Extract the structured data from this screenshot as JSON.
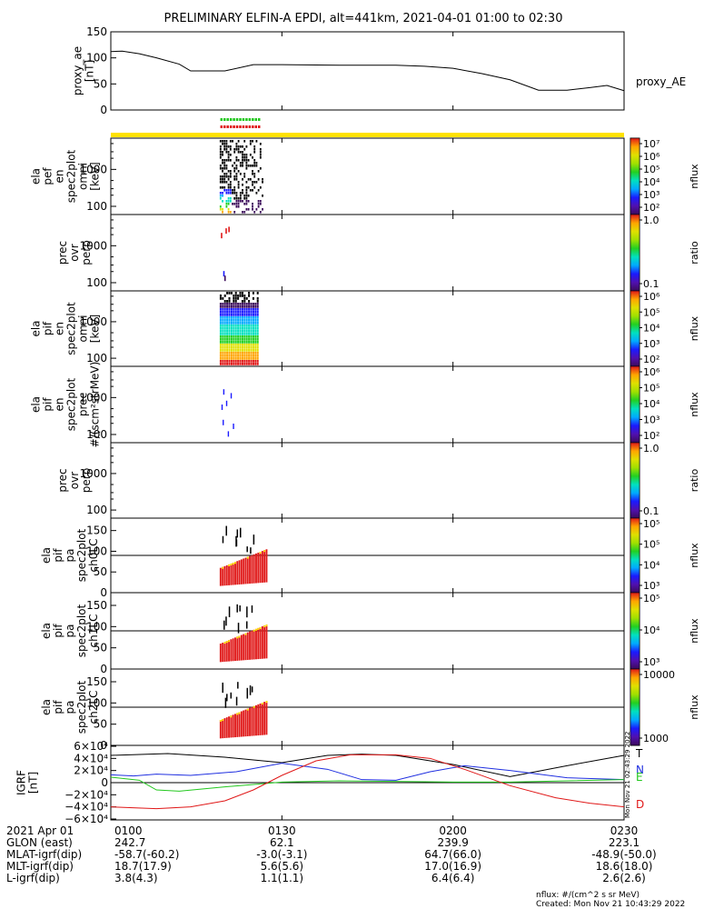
{
  "title": "PRELIMINARY ELFIN-A EPDI, alt=441km, 2021-04-01 01:00 to 02:30",
  "colors": {
    "black": "#000000",
    "blue": "#1f2fe0",
    "green": "#22c81e",
    "red": "#e01818",
    "yellow": "#ffe200",
    "orange": "#ffa500",
    "dark_purple": "#3b0a5a"
  },
  "chart_data": [
    {
      "type": "line",
      "ylabel": "proxy_ae\n[nT]",
      "yticks": [
        "150",
        "100",
        "50",
        "0"
      ],
      "ylim": [
        0,
        150
      ],
      "legend": "proxy_AE",
      "series": [
        {
          "name": "proxy_AE",
          "x": [
            0,
            2,
            5,
            8,
            12,
            14,
            20,
            25,
            30,
            40,
            45,
            50,
            55,
            60,
            65,
            70,
            75,
            80,
            84,
            87,
            90
          ],
          "values": [
            112,
            113,
            108,
            100,
            88,
            75,
            75,
            87,
            87,
            86,
            86,
            86,
            84,
            80,
            70,
            58,
            38,
            38,
            43,
            47,
            37
          ]
        }
      ]
    },
    {
      "type": "heatmap",
      "ylabel": "ela\npef\nen\nspec2plot\nomni\n[keV]",
      "yticks": [
        "1000",
        "100"
      ],
      "cbar_label": "nflux",
      "cbar_ticks": [
        "10⁷",
        "10⁶",
        "10⁵",
        "10⁴",
        "10³",
        "10²"
      ]
    },
    {
      "type": "heatmap",
      "ylabel": "prec\novr\nperp",
      "yticks": [
        "1000",
        "100"
      ],
      "cbar_label": "ratio",
      "cbar_ticks": [
        "1.0",
        "0.1"
      ]
    },
    {
      "type": "heatmap",
      "ylabel": "ela\npif\nen\nspec2plot\nomni\n[keV]",
      "yticks": [
        "1000",
        "100"
      ],
      "cbar_label": "nflux",
      "cbar_ticks": [
        "10⁶",
        "10⁵",
        "10⁴",
        "10³",
        "10²"
      ]
    },
    {
      "type": "heatmap",
      "ylabel": "ela\npif\nen\nspec2plot\nprec\n#/(scm²strMeV)",
      "yticks": [
        "1000",
        "100"
      ],
      "cbar_label": "nflux",
      "cbar_ticks": [
        "10⁶",
        "10⁵",
        "10⁴",
        "10³",
        "10²"
      ]
    },
    {
      "type": "heatmap",
      "ylabel": "prec\novr\nperp",
      "yticks": [
        "1000",
        "100"
      ],
      "cbar_label": "ratio",
      "cbar_ticks": [
        "1.0",
        "0.1"
      ]
    },
    {
      "type": "heatmap",
      "ylabel": "ela\npif\npa\nspec2plot\nch0LC",
      "yticks": [
        "150",
        "100",
        "50",
        "0"
      ],
      "cbar_label": "nflux",
      "cbar_ticks": [
        "10⁵",
        "10⁵",
        "10⁴",
        "10³"
      ]
    },
    {
      "type": "heatmap",
      "ylabel": "ela\npif\npa\nspec2plot\nch1LC",
      "yticks": [
        "150",
        "100",
        "50",
        "0"
      ],
      "cbar_label": "nflux",
      "cbar_ticks": [
        "10⁵",
        "10⁴",
        "10³"
      ]
    },
    {
      "type": "heatmap",
      "ylabel": "ela\npif\npa\nspec2plot\nch2LC",
      "yticks": [
        "150",
        "100",
        "50",
        "0"
      ],
      "cbar_label": "nflux",
      "cbar_ticks": [
        "10000",
        "1000"
      ]
    },
    {
      "type": "line",
      "ylabel": "IGRF\n[nT]",
      "yticks": [
        "6×10⁴",
        "4×10⁴",
        "2×10⁴",
        "0",
        "−2×10⁴",
        "−4×10⁴",
        "−6×10⁴"
      ],
      "ylim": [
        -60000,
        60000
      ],
      "series": [
        {
          "name": "T",
          "color": "black",
          "x": [
            0,
            10,
            20,
            30,
            38,
            44,
            50,
            60,
            70,
            80,
            90
          ],
          "values": [
            45000,
            48000,
            42000,
            33000,
            45000,
            47000,
            45000,
            30000,
            10000,
            28000,
            45000
          ]
        },
        {
          "name": "N",
          "color": "blue",
          "x": [
            0,
            4,
            8,
            14,
            22,
            30,
            38,
            44,
            50,
            56,
            62,
            70,
            80,
            90
          ],
          "values": [
            13000,
            11000,
            14000,
            12000,
            18000,
            32000,
            22000,
            5000,
            4000,
            18000,
            28000,
            20000,
            8000,
            5000
          ]
        },
        {
          "name": "E",
          "color": "green",
          "x": [
            0,
            5,
            8,
            12,
            20,
            30,
            40,
            50,
            60,
            70,
            80,
            90
          ],
          "values": [
            9000,
            4000,
            -12000,
            -14000,
            -7000,
            1000,
            3000,
            2000,
            1000,
            1000,
            3000,
            5000
          ]
        },
        {
          "name": "D",
          "color": "red",
          "x": [
            0,
            8,
            14,
            20,
            25,
            30,
            36,
            42,
            50,
            56,
            62,
            70,
            78,
            84,
            90
          ],
          "values": [
            -40000,
            -43000,
            -40000,
            -30000,
            -12000,
            12000,
            36000,
            46000,
            46000,
            40000,
            22000,
            -5000,
            -25000,
            -34000,
            -40000
          ]
        }
      ]
    }
  ],
  "footer": {
    "rows": [
      {
        "label": "2021 Apr 01",
        "values": [
          "0100",
          "0130",
          "0200",
          "0230"
        ]
      },
      {
        "label": "GLON (east)",
        "values": [
          "242.7",
          "62.1",
          "239.9",
          "223.1"
        ]
      },
      {
        "label": "MLAT-igrf(dip)",
        "values": [
          "-58.7(-60.2)",
          "-3.0(-3.1)",
          "64.7(66.0)",
          "-48.9(-50.0)"
        ]
      },
      {
        "label": "MLT-igrf(dip)",
        "values": [
          "18.7(17.9)",
          "5.6(5.6)",
          "17.0(16.9)",
          "18.6(18.0)"
        ]
      },
      {
        "label": "L-igrf(dip)",
        "values": [
          "3.8(4.3)",
          "1.1(1.1)",
          "6.4(6.4)",
          "2.6(2.6)"
        ]
      }
    ],
    "units_note": "nflux: #/(cm^2 s sr MeV)",
    "created": "Created: Mon Nov 21 10:43:29 2022",
    "vertical_stamp": "Mon Nov 21 02:43:29 2022"
  }
}
